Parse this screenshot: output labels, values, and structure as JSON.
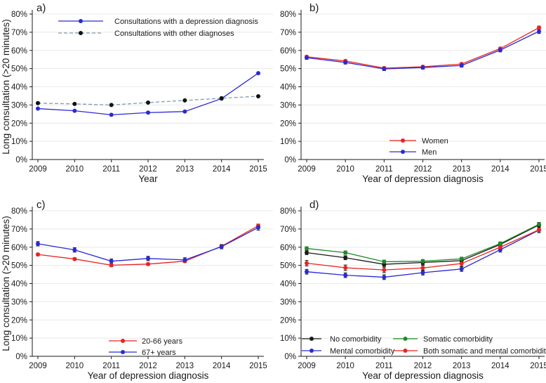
{
  "figure": {
    "description": "Four-panel line chart figure of long consultations over time",
    "background": "#ffffff",
    "grid_color": "#e8e8e8",
    "axis_color": "#1a1a1a",
    "error_bar_color": "#1a1a1a"
  },
  "chart_data": [
    {
      "type": "line",
      "panel_label": "a)",
      "xlabel": "Year",
      "ylabel": "Long consultation (>20 minutes)",
      "x": [
        2009,
        2010,
        2011,
        2012,
        2013,
        2014,
        2015
      ],
      "ylim": [
        0,
        80
      ],
      "ytick_step": 10,
      "ytick_suffix": "%",
      "grid": "horizontal",
      "legend_position": "upper-left",
      "series": [
        {
          "name": "Consultations with a depression diagnosis",
          "line_color": "#2a2ad6",
          "marker_color": "#2a2ad6",
          "dash": false,
          "values": [
            28.0,
            26.8,
            24.6,
            25.8,
            26.4,
            33.5,
            47.5
          ],
          "errors": null
        },
        {
          "name": "Consultations with other diagnoses",
          "line_color": "#7d9fb0",
          "marker_color": "#111111",
          "dash": true,
          "values": [
            31.0,
            30.6,
            30.0,
            31.3,
            32.5,
            33.7,
            34.8
          ],
          "errors": null
        }
      ]
    },
    {
      "type": "line",
      "panel_label": "b)",
      "xlabel": "Year of depression diagnosis",
      "ylabel": "",
      "x": [
        2009,
        2010,
        2011,
        2012,
        2013,
        2014,
        2015
      ],
      "ylim": [
        0,
        80
      ],
      "ytick_step": 10,
      "ytick_suffix": "%",
      "grid": "horizontal",
      "legend_position": "lower-center",
      "series": [
        {
          "name": "Women",
          "line_color": "#e8241f",
          "marker_color": "#e8241f",
          "dash": false,
          "values": [
            56.5,
            54.2,
            50.3,
            51.0,
            52.5,
            61.0,
            72.5
          ],
          "errors": [
            0.7,
            0.7,
            0.7,
            0.7,
            0.7,
            0.8,
            0.9
          ]
        },
        {
          "name": "Men",
          "line_color": "#2a2ad6",
          "marker_color": "#2a2ad6",
          "dash": false,
          "values": [
            56.0,
            53.4,
            49.8,
            50.6,
            51.7,
            60.2,
            70.5
          ],
          "errors": [
            0.9,
            0.9,
            0.9,
            0.9,
            0.9,
            1.0,
            1.2
          ]
        }
      ]
    },
    {
      "type": "line",
      "panel_label": "c)",
      "xlabel": "Year of depression diagnosis",
      "ylabel": "Long consultation (>20 minutes)",
      "x": [
        2009,
        2010,
        2011,
        2012,
        2013,
        2014,
        2015
      ],
      "ylim": [
        0,
        80
      ],
      "ytick_step": 10,
      "ytick_suffix": "%",
      "grid": "horizontal",
      "legend_position": "lower-center",
      "series": [
        {
          "name": "20-66 years",
          "line_color": "#e8241f",
          "marker_color": "#e8241f",
          "dash": false,
          "values": [
            56.0,
            53.5,
            50.1,
            50.7,
            52.3,
            60.5,
            71.8
          ],
          "errors": [
            0.7,
            0.7,
            0.8,
            0.7,
            0.7,
            0.8,
            0.9
          ]
        },
        {
          "name": "67+ years",
          "line_color": "#2a2ad6",
          "marker_color": "#2a2ad6",
          "dash": false,
          "values": [
            61.9,
            58.5,
            52.3,
            53.8,
            53.0,
            60.3,
            70.8
          ],
          "errors": [
            1.2,
            1.2,
            1.2,
            1.2,
            1.2,
            1.2,
            1.4
          ]
        }
      ]
    },
    {
      "type": "line",
      "panel_label": "d)",
      "xlabel": "Year of depression diagnosis",
      "ylabel": "",
      "x": [
        2009,
        2010,
        2011,
        2012,
        2013,
        2014,
        2015
      ],
      "ylim": [
        0,
        80
      ],
      "ytick_step": 10,
      "ytick_suffix": "%",
      "grid": "horizontal",
      "legend_position": "lower-two-column",
      "series": [
        {
          "name": "No comorbidity",
          "line_color": "#1a1a1a",
          "marker_color": "#1a1a1a",
          "dash": false,
          "values": [
            57.0,
            54.2,
            50.6,
            51.6,
            52.6,
            61.5,
            72.2
          ],
          "errors": [
            1.1,
            1.1,
            1.1,
            1.1,
            1.1,
            1.1,
            1.2
          ]
        },
        {
          "name": "Somatic comorbidity",
          "line_color": "#1f8b24",
          "marker_color": "#1f8b24",
          "dash": false,
          "values": [
            59.3,
            57.0,
            52.0,
            52.3,
            53.6,
            62.0,
            72.6
          ],
          "errors": [
            0.9,
            0.9,
            0.9,
            0.9,
            0.9,
            0.9,
            1.0
          ]
        },
        {
          "name": "Mental comorbidity",
          "line_color": "#2a2ad6",
          "marker_color": "#2a2ad6",
          "dash": false,
          "values": [
            46.5,
            44.6,
            43.5,
            46.0,
            48.0,
            58.6,
            69.4
          ],
          "errors": [
            1.3,
            1.3,
            1.3,
            1.3,
            1.3,
            1.3,
            1.4
          ]
        },
        {
          "name": "Both somatic and mental comorbidity",
          "line_color": "#e8241f",
          "marker_color": "#e8241f",
          "dash": false,
          "values": [
            51.2,
            48.7,
            47.5,
            48.6,
            51.0,
            60.0,
            69.6
          ],
          "errors": [
            1.5,
            1.5,
            1.5,
            1.5,
            1.5,
            1.5,
            1.5
          ]
        }
      ]
    }
  ]
}
